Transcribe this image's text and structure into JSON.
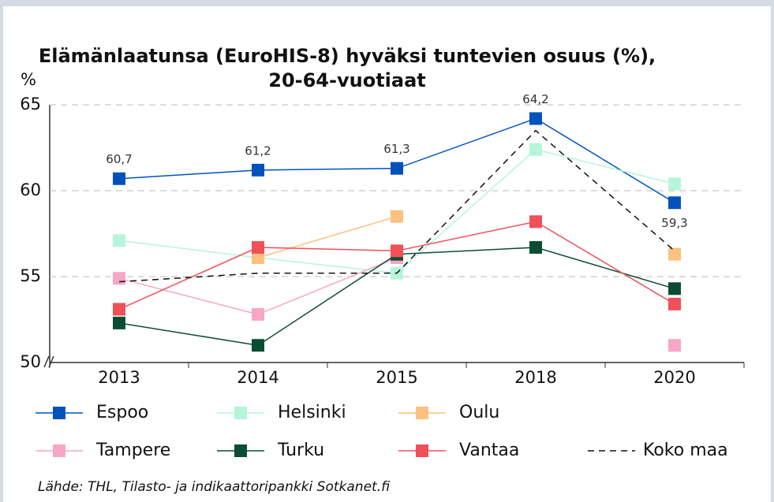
{
  "chart_data": {
    "type": "line",
    "title": [
      "Elämänlaatunsa (EuroHIS-8) hyväksi tuntevien osuus (%),",
      "20-64-vuotiaat"
    ],
    "y_label": "%",
    "source": "Lähde: THL, Tilasto- ja indikaattoripankki Sotkanet.fi",
    "categories": [
      "2013",
      "2014",
      "2015",
      "2018",
      "2020"
    ],
    "ylim": [
      50,
      65
    ],
    "yticks": [
      50,
      55,
      60,
      65
    ],
    "grid": true,
    "series": [
      {
        "name": "Espoo",
        "color": "#0052bb",
        "values": [
          60.7,
          61.2,
          61.3,
          64.2,
          59.3
        ],
        "value_labels": [
          "60,7",
          "61,2",
          "61,3",
          "64,2",
          "59,3"
        ]
      },
      {
        "name": "Helsinki",
        "color": "#b6f5da",
        "values": [
          57.1,
          56.1,
          55.2,
          62.4,
          60.4
        ]
      },
      {
        "name": "Oulu",
        "color": "#fcc07f",
        "values": [
          null,
          56.1,
          58.5,
          null,
          56.3
        ]
      },
      {
        "name": "Tampere",
        "color": "#f8a6c6",
        "values": [
          54.9,
          52.8,
          56.1,
          null,
          51.0
        ]
      },
      {
        "name": "Turku",
        "color": "#0b4d33",
        "values": [
          52.3,
          51.0,
          56.3,
          56.7,
          54.3
        ]
      },
      {
        "name": "Vantaa",
        "color": "#f0505a",
        "values": [
          53.1,
          56.7,
          56.5,
          58.2,
          53.4
        ]
      },
      {
        "name": "Koko maa",
        "color": "#111111",
        "dashed": true,
        "markers": false,
        "values": [
          54.7,
          55.2,
          55.2,
          63.5,
          56.5
        ]
      }
    ]
  }
}
